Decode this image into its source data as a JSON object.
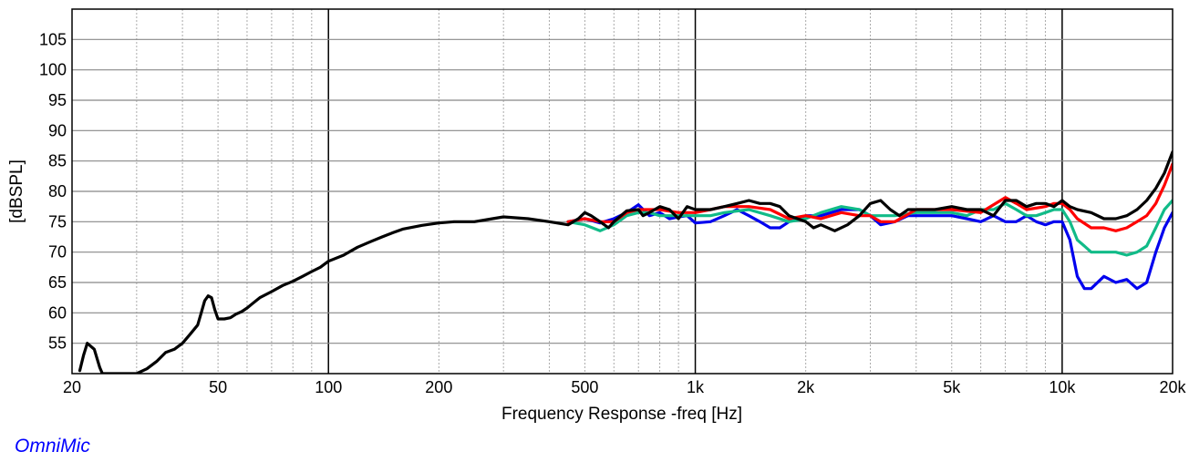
{
  "chart_data": {
    "type": "line",
    "title": "",
    "xlabel": "Frequency Response -freq [Hz]",
    "ylabel": "[dBSPL]",
    "x_scale": "log",
    "xlim": [
      20,
      20000
    ],
    "ylim": [
      50,
      110
    ],
    "grid": true,
    "x_ticks": [
      {
        "value": 20,
        "label": "20"
      },
      {
        "value": 50,
        "label": "50"
      },
      {
        "value": 100,
        "label": "100"
      },
      {
        "value": 200,
        "label": "200"
      },
      {
        "value": 500,
        "label": "500"
      },
      {
        "value": 1000,
        "label": "1k"
      },
      {
        "value": 2000,
        "label": "2k"
      },
      {
        "value": 5000,
        "label": "5k"
      },
      {
        "value": 10000,
        "label": "10k"
      },
      {
        "value": 20000,
        "label": "20k"
      }
    ],
    "y_ticks": [
      55,
      60,
      65,
      70,
      75,
      80,
      85,
      90,
      95,
      100,
      105
    ],
    "series": [
      {
        "color": "#0000ee",
        "points": [
          [
            450,
            75.0
          ],
          [
            500,
            75.5
          ],
          [
            550,
            74.8
          ],
          [
            600,
            75.5
          ],
          [
            650,
            76.5
          ],
          [
            700,
            77.8
          ],
          [
            750,
            76.0
          ],
          [
            800,
            76.5
          ],
          [
            850,
            75.5
          ],
          [
            900,
            75.8
          ],
          [
            950,
            76.0
          ],
          [
            1000,
            74.8
          ],
          [
            1100,
            75.0
          ],
          [
            1200,
            76.0
          ],
          [
            1300,
            77.0
          ],
          [
            1400,
            76.0
          ],
          [
            1500,
            75.0
          ],
          [
            1600,
            74.0
          ],
          [
            1700,
            74.0
          ],
          [
            1800,
            75.0
          ],
          [
            2000,
            76.0
          ],
          [
            2200,
            76.0
          ],
          [
            2500,
            77.0
          ],
          [
            2800,
            77.0
          ],
          [
            3000,
            76.0
          ],
          [
            3200,
            74.5
          ],
          [
            3500,
            75.0
          ],
          [
            3800,
            76.0
          ],
          [
            4000,
            76.0
          ],
          [
            4500,
            76.0
          ],
          [
            5000,
            76.0
          ],
          [
            5500,
            75.5
          ],
          [
            6000,
            75.0
          ],
          [
            6500,
            76.0
          ],
          [
            7000,
            75.0
          ],
          [
            7500,
            75.0
          ],
          [
            8000,
            76.0
          ],
          [
            8500,
            75.0
          ],
          [
            9000,
            74.5
          ],
          [
            9500,
            75.0
          ],
          [
            10000,
            75.0
          ],
          [
            10500,
            72.0
          ],
          [
            11000,
            66.0
          ],
          [
            11500,
            64.0
          ],
          [
            12000,
            64.0
          ],
          [
            13000,
            66.0
          ],
          [
            14000,
            65.0
          ],
          [
            15000,
            65.5
          ],
          [
            16000,
            64.0
          ],
          [
            17000,
            65.0
          ],
          [
            18000,
            70.0
          ],
          [
            19000,
            74.0
          ],
          [
            20000,
            76.5
          ]
        ]
      },
      {
        "color": "#11bb88",
        "points": [
          [
            450,
            75.0
          ],
          [
            500,
            74.5
          ],
          [
            550,
            73.5
          ],
          [
            600,
            74.5
          ],
          [
            650,
            76.0
          ],
          [
            700,
            76.5
          ],
          [
            750,
            76.5
          ],
          [
            800,
            76.0
          ],
          [
            900,
            76.0
          ],
          [
            1000,
            76.0
          ],
          [
            1100,
            76.0
          ],
          [
            1200,
            76.5
          ],
          [
            1400,
            77.0
          ],
          [
            1600,
            76.0
          ],
          [
            1800,
            75.0
          ],
          [
            2000,
            75.5
          ],
          [
            2200,
            76.5
          ],
          [
            2500,
            77.5
          ],
          [
            2800,
            77.0
          ],
          [
            3000,
            76.0
          ],
          [
            3500,
            76.0
          ],
          [
            4000,
            76.5
          ],
          [
            4500,
            76.5
          ],
          [
            5000,
            76.5
          ],
          [
            5500,
            76.0
          ],
          [
            6000,
            77.0
          ],
          [
            6500,
            77.0
          ],
          [
            7000,
            78.0
          ],
          [
            7500,
            77.0
          ],
          [
            8000,
            76.0
          ],
          [
            8500,
            76.0
          ],
          [
            9000,
            76.5
          ],
          [
            9500,
            77.0
          ],
          [
            10000,
            77.0
          ],
          [
            10500,
            75.0
          ],
          [
            11000,
            72.0
          ],
          [
            11500,
            71.0
          ],
          [
            12000,
            70.0
          ],
          [
            14000,
            70.0
          ],
          [
            15000,
            69.5
          ],
          [
            16000,
            70.0
          ],
          [
            17000,
            71.0
          ],
          [
            18000,
            74.0
          ],
          [
            19000,
            77.0
          ],
          [
            20000,
            78.5
          ]
        ]
      },
      {
        "color": "#ff0000",
        "points": [
          [
            450,
            75.0
          ],
          [
            500,
            75.5
          ],
          [
            550,
            75.0
          ],
          [
            600,
            75.0
          ],
          [
            650,
            76.5
          ],
          [
            700,
            77.0
          ],
          [
            750,
            77.0
          ],
          [
            800,
            77.0
          ],
          [
            900,
            76.5
          ],
          [
            1000,
            76.5
          ],
          [
            1100,
            77.0
          ],
          [
            1200,
            77.5
          ],
          [
            1400,
            77.5
          ],
          [
            1600,
            77.0
          ],
          [
            1800,
            75.5
          ],
          [
            2000,
            76.0
          ],
          [
            2200,
            75.5
          ],
          [
            2500,
            76.5
          ],
          [
            2800,
            76.0
          ],
          [
            3000,
            76.0
          ],
          [
            3200,
            75.0
          ],
          [
            3500,
            75.0
          ],
          [
            4000,
            77.0
          ],
          [
            4500,
            77.0
          ],
          [
            5000,
            77.0
          ],
          [
            6000,
            76.5
          ],
          [
            7000,
            79.0
          ],
          [
            7500,
            78.0
          ],
          [
            8000,
            77.0
          ],
          [
            9000,
            77.5
          ],
          [
            9500,
            78.0
          ],
          [
            10000,
            78.0
          ],
          [
            10500,
            77.0
          ],
          [
            11000,
            75.5
          ],
          [
            12000,
            74.0
          ],
          [
            13000,
            74.0
          ],
          [
            14000,
            73.5
          ],
          [
            15000,
            74.0
          ],
          [
            16000,
            75.0
          ],
          [
            17000,
            76.0
          ],
          [
            18000,
            78.0
          ],
          [
            19000,
            81.0
          ],
          [
            20000,
            84.5
          ]
        ]
      },
      {
        "color": "#000000",
        "points": [
          [
            21,
            50.5
          ],
          [
            21.5,
            53.0
          ],
          [
            22,
            55.0
          ],
          [
            23,
            54.0
          ],
          [
            23.8,
            51.0
          ],
          [
            24.2,
            50.0
          ],
          [
            30,
            50.0
          ],
          [
            32,
            50.8
          ],
          [
            34,
            52.0
          ],
          [
            36,
            53.5
          ],
          [
            38,
            54.0
          ],
          [
            40,
            55.0
          ],
          [
            42,
            56.5
          ],
          [
            44,
            58.0
          ],
          [
            45,
            60.0
          ],
          [
            46,
            62.0
          ],
          [
            47,
            62.8
          ],
          [
            48,
            62.5
          ],
          [
            49,
            60.5
          ],
          [
            50,
            59.0
          ],
          [
            52,
            59.0
          ],
          [
            54,
            59.2
          ],
          [
            56,
            59.8
          ],
          [
            58,
            60.2
          ],
          [
            60,
            60.8
          ],
          [
            62,
            61.5
          ],
          [
            65,
            62.5
          ],
          [
            70,
            63.5
          ],
          [
            75,
            64.5
          ],
          [
            80,
            65.2
          ],
          [
            85,
            66.0
          ],
          [
            90,
            66.8
          ],
          [
            95,
            67.5
          ],
          [
            100,
            68.5
          ],
          [
            110,
            69.5
          ],
          [
            120,
            70.8
          ],
          [
            130,
            71.7
          ],
          [
            140,
            72.5
          ],
          [
            150,
            73.2
          ],
          [
            160,
            73.8
          ],
          [
            180,
            74.4
          ],
          [
            200,
            74.8
          ],
          [
            220,
            75.0
          ],
          [
            250,
            75.0
          ],
          [
            280,
            75.5
          ],
          [
            300,
            75.8
          ],
          [
            350,
            75.5
          ],
          [
            400,
            75.0
          ],
          [
            450,
            74.5
          ],
          [
            480,
            75.5
          ],
          [
            500,
            76.5
          ],
          [
            520,
            76.0
          ],
          [
            550,
            75.0
          ],
          [
            580,
            74.0
          ],
          [
            600,
            75.0
          ],
          [
            650,
            76.8
          ],
          [
            700,
            77.0
          ],
          [
            720,
            76.0
          ],
          [
            750,
            76.5
          ],
          [
            800,
            77.5
          ],
          [
            850,
            77.0
          ],
          [
            900,
            75.5
          ],
          [
            950,
            77.5
          ],
          [
            1000,
            77.0
          ],
          [
            1100,
            77.0
          ],
          [
            1200,
            77.5
          ],
          [
            1300,
            78.0
          ],
          [
            1400,
            78.5
          ],
          [
            1500,
            78.0
          ],
          [
            1600,
            78.0
          ],
          [
            1700,
            77.5
          ],
          [
            1800,
            76.0
          ],
          [
            2000,
            75.0
          ],
          [
            2100,
            74.0
          ],
          [
            2200,
            74.5
          ],
          [
            2400,
            73.5
          ],
          [
            2600,
            74.5
          ],
          [
            2800,
            76.0
          ],
          [
            3000,
            78.0
          ],
          [
            3200,
            78.5
          ],
          [
            3400,
            77.0
          ],
          [
            3600,
            76.0
          ],
          [
            3800,
            77.0
          ],
          [
            4000,
            77.0
          ],
          [
            4500,
            77.0
          ],
          [
            5000,
            77.5
          ],
          [
            5500,
            77.0
          ],
          [
            6000,
            77.0
          ],
          [
            6500,
            76.0
          ],
          [
            7000,
            78.5
          ],
          [
            7500,
            78.5
          ],
          [
            8000,
            77.5
          ],
          [
            8500,
            78.0
          ],
          [
            9000,
            78.0
          ],
          [
            9500,
            77.5
          ],
          [
            10000,
            78.5
          ],
          [
            10500,
            77.5
          ],
          [
            11000,
            77.0
          ],
          [
            12000,
            76.5
          ],
          [
            13000,
            75.5
          ],
          [
            14000,
            75.5
          ],
          [
            15000,
            76.0
          ],
          [
            16000,
            77.0
          ],
          [
            17000,
            78.5
          ],
          [
            18000,
            80.5
          ],
          [
            19000,
            83.0
          ],
          [
            20000,
            86.5
          ]
        ]
      }
    ]
  },
  "footer": {
    "brand": "OmniMic"
  }
}
